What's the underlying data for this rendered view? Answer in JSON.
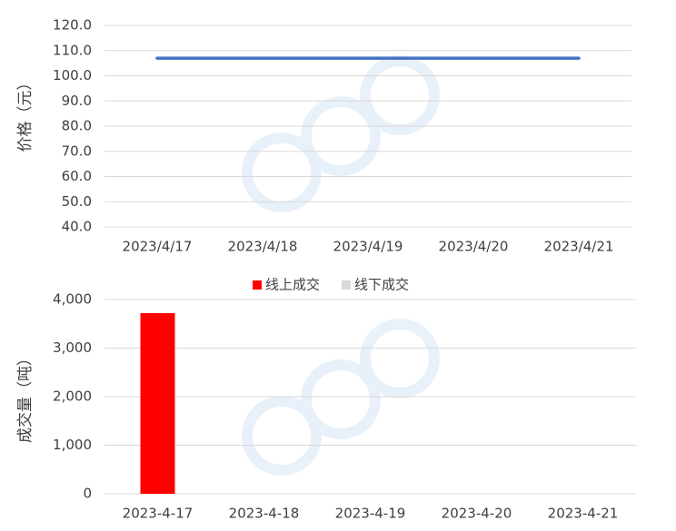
{
  "chart_data": [
    {
      "type": "line",
      "y_label": "价格（元）",
      "categories": [
        "2023/4/17",
        "2023/4/18",
        "2023/4/19",
        "2023/4/20",
        "2023/4/21"
      ],
      "series": [
        {
          "name": null,
          "color": "#4472c4",
          "values": [
            107,
            107,
            107,
            107,
            107
          ]
        }
      ],
      "ylim": [
        40,
        120
      ],
      "yticks": [
        {
          "value": 40,
          "label": "40.0"
        },
        {
          "value": 50,
          "label": "50.0"
        },
        {
          "value": 60,
          "label": "60.0"
        },
        {
          "value": 70,
          "label": "70.0"
        },
        {
          "value": 80,
          "label": "80.0"
        },
        {
          "value": 90,
          "label": "90.0"
        },
        {
          "value": 100,
          "label": "100.0"
        },
        {
          "value": 110,
          "label": "110.0"
        },
        {
          "value": 120,
          "label": "120.0"
        }
      ],
      "grid": true
    },
    {
      "type": "bar",
      "y_label": "成交量（吨）",
      "categories": [
        "2023-4-17",
        "2023-4-18",
        "2023-4-19",
        "2023-4-20",
        "2023-4-21"
      ],
      "series": [
        {
          "name": "线上成交",
          "color": "#ff0000",
          "values": [
            3720,
            0,
            0,
            0,
            0
          ]
        },
        {
          "name": "线下成交",
          "color": "#d9d9d9",
          "values": [
            0,
            0,
            0,
            0,
            0
          ]
        }
      ],
      "ylim": [
        0,
        4000
      ],
      "yticks": [
        0,
        {
          "value": 1000,
          "label": "1,000"
        },
        {
          "value": 2000,
          "label": "2,000"
        },
        {
          "value": 3000,
          "label": "3,000"
        },
        {
          "value": 4000,
          "label": "4,000"
        }
      ],
      "grid": true,
      "legend": "top"
    }
  ]
}
